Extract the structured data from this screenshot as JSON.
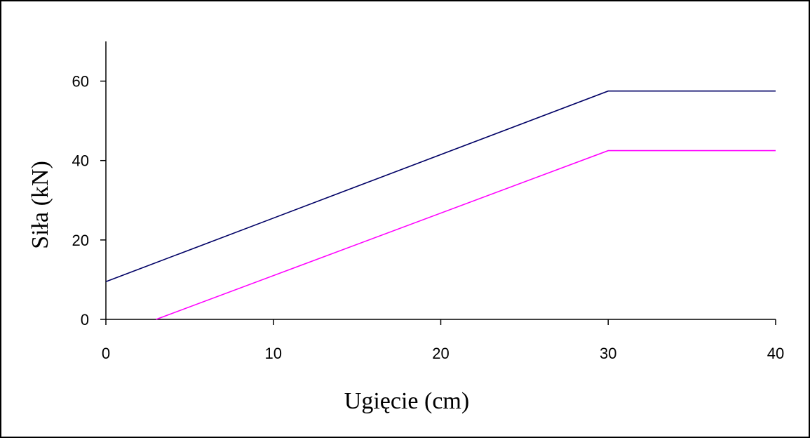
{
  "chart_data": {
    "type": "line",
    "xlabel": "Ugięcie (cm)",
    "ylabel": "Siła (kN)",
    "xlim": [
      0,
      40
    ],
    "ylim": [
      0,
      70
    ],
    "x_ticks": [
      "0",
      "10",
      "20",
      "30",
      "40"
    ],
    "y_ticks": [
      "0",
      "20",
      "40",
      "60"
    ],
    "grid": false,
    "legend": "none",
    "series": [
      {
        "color": "#000066",
        "x": [
          0,
          30,
          40
        ],
        "y": [
          9.5,
          57.5,
          57.5
        ]
      },
      {
        "color": "#ff00ff",
        "x": [
          3,
          30,
          40
        ],
        "y": [
          0,
          42.5,
          42.5
        ]
      }
    ]
  }
}
